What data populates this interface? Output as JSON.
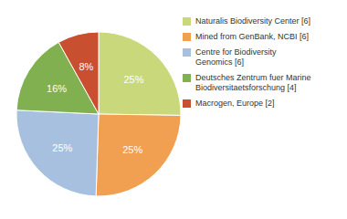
{
  "chart_data": {
    "type": "pie",
    "categories": [
      "Naturalis Biodiversity Center [6]",
      "Mined from GenBank, NCBI [6]",
      "Centre for Biodiversity\nGenomics [6]",
      "Deutsches Zentrum fuer Marine\nBiodiversitaetsforschung [4]",
      "Macrogen, Europe [2]"
    ],
    "values": [
      25,
      25,
      25,
      16,
      8
    ],
    "value_labels": [
      "25%",
      "25%",
      "25%",
      "16%",
      "8%"
    ],
    "colors": [
      "#c8d87a",
      "#f0a050",
      "#a8c0e0",
      "#80b050",
      "#c85030"
    ],
    "data_labels": true,
    "legend": "right"
  }
}
